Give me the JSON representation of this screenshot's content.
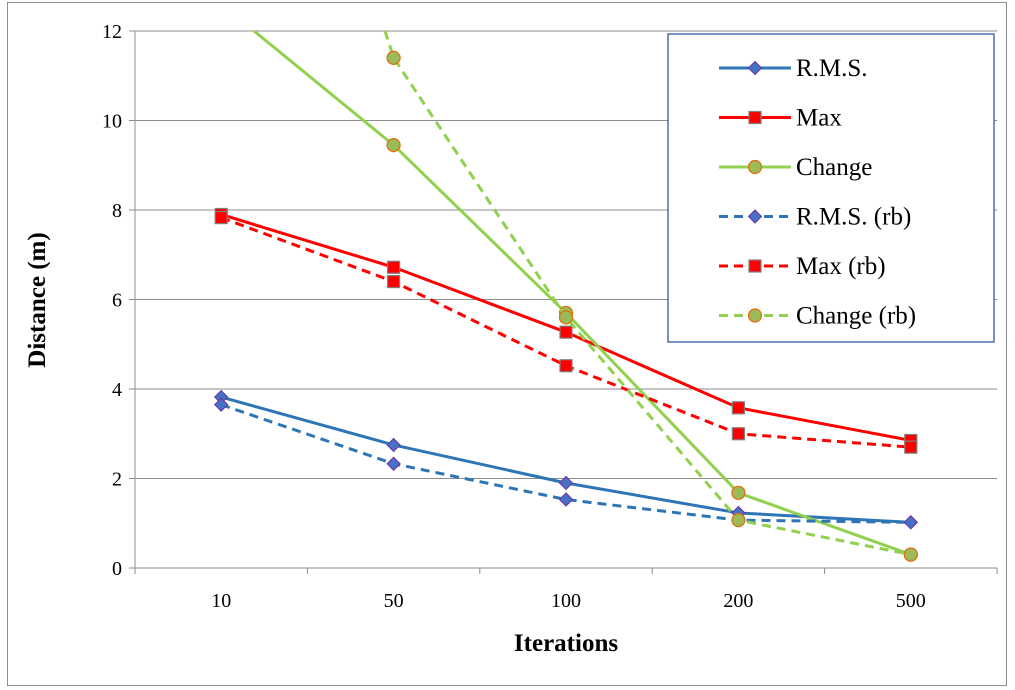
{
  "chart_data": {
    "type": "line",
    "xlabel": "Iterations",
    "ylabel": "Distance (m)",
    "categories": [
      "10",
      "50",
      "100",
      "200",
      "500"
    ],
    "ylim": [
      0,
      12
    ],
    "yticks": [
      "0",
      "2",
      "4",
      "6",
      "8",
      "10",
      "12"
    ],
    "grid": true,
    "legend_position": "top-right",
    "series": [
      {
        "name": "R.M.S.",
        "values": [
          3.82,
          2.75,
          1.9,
          1.23,
          1.02
        ],
        "color": "#2e75b6",
        "dash": false,
        "marker": "diamond"
      },
      {
        "name": "Max",
        "values": [
          7.9,
          6.72,
          5.27,
          3.58,
          2.85
        ],
        "color": "#ff0000",
        "dash": false,
        "marker": "square"
      },
      {
        "name": "Change",
        "values": [
          12.6,
          9.45,
          5.7,
          1.68,
          0.3
        ],
        "color": "#92d050",
        "dash": false,
        "marker": "circle"
      },
      {
        "name": "R.M.S. (rb)",
        "values": [
          3.65,
          2.33,
          1.53,
          1.07,
          1.02
        ],
        "color": "#2e75b6",
        "dash": true,
        "marker": "diamond"
      },
      {
        "name": "Max (rb)",
        "values": [
          7.83,
          6.4,
          4.52,
          3.0,
          2.7
        ],
        "color": "#ff0000",
        "dash": true,
        "marker": "square"
      },
      {
        "name": "Change (rb)",
        "values": [
          23.5,
          11.4,
          5.6,
          1.07,
          0.3
        ],
        "color": "#92d050",
        "dash": true,
        "marker": "circle"
      }
    ]
  }
}
